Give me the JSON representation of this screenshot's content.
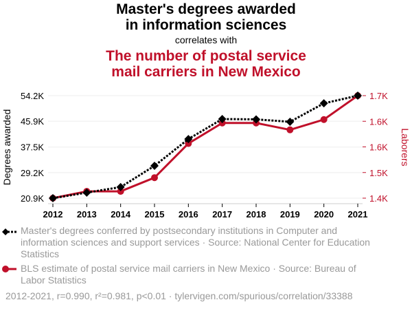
{
  "header": {
    "title_line1": "Master's degrees awarded",
    "title_line2": "in information sciences",
    "correlates": "correlates with",
    "title2_line1": "The number of postal service",
    "title2_line2": "mail carriers in New Mexico"
  },
  "colors": {
    "series1": "#000000",
    "series2": "#c0102a",
    "grid": "#eeeeee"
  },
  "chart_data": {
    "type": "line",
    "x": [
      2012,
      2013,
      2014,
      2015,
      2016,
      2017,
      2018,
      2019,
      2020,
      2021
    ],
    "x_tick_labels": [
      "2012",
      "2013",
      "2014",
      "2015",
      "2016",
      "2017",
      "2018",
      "2019",
      "2020",
      "2021"
    ],
    "ylabel": "Degrees awarded",
    "y2label": "Laborers",
    "ylim": [
      20.9,
      54.2
    ],
    "y_tick_labels": [
      "20.9K",
      "29.2K",
      "37.5K",
      "45.9K",
      "54.2K"
    ],
    "y_ticks": [
      20.9,
      29.2,
      37.5,
      45.9,
      54.2
    ],
    "y2lim": [
      1.4,
      1.7
    ],
    "y2_tick_labels": [
      "1.4K",
      "1.5K",
      "1.6K",
      "1.6K",
      "1.7K"
    ],
    "y2_ticks": [
      1.4,
      1.475,
      1.55,
      1.625,
      1.7
    ],
    "grid": true,
    "series": [
      {
        "name": "Master's degrees conferred by postsecondary institutions in Computer and information sciences and support services · Source: National Center for Education Statistics",
        "axis": "left",
        "units": "K",
        "values": [
          20.9,
          22.7,
          24.5,
          31.4,
          40.1,
          46.6,
          46.5,
          45.7,
          51.7,
          54.2
        ]
      },
      {
        "name": "BLS estimate of postal service mail carriers in New Mexico · Source: Bureau of Labor Statistics",
        "axis": "right",
        "units": "K",
        "values": [
          1.4,
          1.42,
          1.42,
          1.46,
          1.56,
          1.62,
          1.62,
          1.6,
          1.63,
          1.7
        ]
      }
    ],
    "footer": "2012-2021, r=0.990, r²=0.981, p<0.01 · tylervigen.com/spurious/correlation/33388"
  }
}
